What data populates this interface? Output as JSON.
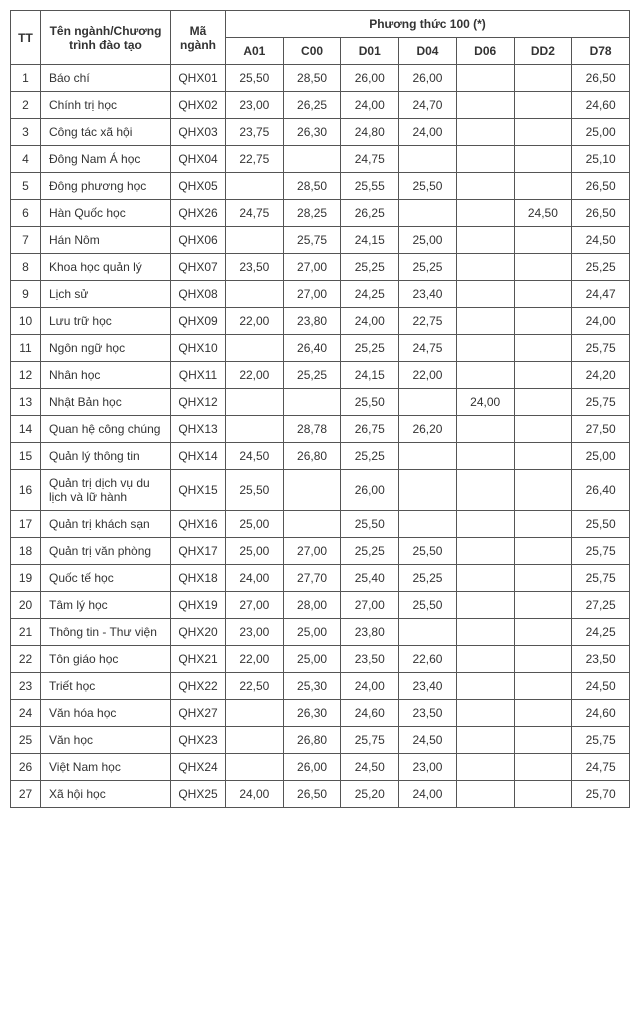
{
  "headers": {
    "tt": "TT",
    "name": "Tên ngành/Chương trình đào tạo",
    "code": "Mã ngành",
    "method": "Phương thức 100 (*)"
  },
  "subheaders": [
    "A01",
    "C00",
    "D01",
    "D04",
    "D06",
    "DD2",
    "D78"
  ],
  "rows": [
    {
      "tt": "1",
      "name": "Báo chí",
      "code": "QHX01",
      "s": [
        "25,50",
        "28,50",
        "26,00",
        "26,00",
        "",
        "",
        "26,50"
      ]
    },
    {
      "tt": "2",
      "name": "Chính trị học",
      "code": "QHX02",
      "s": [
        "23,00",
        "26,25",
        "24,00",
        "24,70",
        "",
        "",
        "24,60"
      ]
    },
    {
      "tt": "3",
      "name": "Công tác xã hội",
      "code": "QHX03",
      "s": [
        "23,75",
        "26,30",
        "24,80",
        "24,00",
        "",
        "",
        "25,00"
      ]
    },
    {
      "tt": "4",
      "name": "Đông Nam Á học",
      "code": "QHX04",
      "s": [
        "22,75",
        "",
        "24,75",
        "",
        "",
        "",
        "25,10"
      ]
    },
    {
      "tt": "5",
      "name": "Đông phương học",
      "code": "QHX05",
      "s": [
        "",
        "28,50",
        "25,55",
        "25,50",
        "",
        "",
        "26,50"
      ]
    },
    {
      "tt": "6",
      "name": "Hàn Quốc học",
      "code": "QHX26",
      "s": [
        "24,75",
        "28,25",
        "26,25",
        "",
        "",
        "24,50",
        "26,50"
      ]
    },
    {
      "tt": "7",
      "name": "Hán Nôm",
      "code": "QHX06",
      "s": [
        "",
        "25,75",
        "24,15",
        "25,00",
        "",
        "",
        "24,50"
      ]
    },
    {
      "tt": "8",
      "name": "Khoa học quản lý",
      "code": "QHX07",
      "s": [
        "23,50",
        "27,00",
        "25,25",
        "25,25",
        "",
        "",
        "25,25"
      ]
    },
    {
      "tt": "9",
      "name": "Lịch sử",
      "code": "QHX08",
      "s": [
        "",
        "27,00",
        "24,25",
        "23,40",
        "",
        "",
        "24,47"
      ]
    },
    {
      "tt": "10",
      "name": "Lưu trữ học",
      "code": "QHX09",
      "s": [
        "22,00",
        "23,80",
        "24,00",
        "22,75",
        "",
        "",
        "24,00"
      ]
    },
    {
      "tt": "11",
      "name": "Ngôn ngữ học",
      "code": "QHX10",
      "s": [
        "",
        "26,40",
        "25,25",
        "24,75",
        "",
        "",
        "25,75"
      ]
    },
    {
      "tt": "12",
      "name": "Nhân học",
      "code": "QHX11",
      "s": [
        "22,00",
        "25,25",
        "24,15",
        "22,00",
        "",
        "",
        "24,20"
      ]
    },
    {
      "tt": "13",
      "name": "Nhật Bản học",
      "code": "QHX12",
      "s": [
        "",
        "",
        "25,50",
        "",
        "24,00",
        "",
        "25,75"
      ]
    },
    {
      "tt": "14",
      "name": "Quan hệ công chúng",
      "code": "QHX13",
      "s": [
        "",
        "28,78",
        "26,75",
        "26,20",
        "",
        "",
        "27,50"
      ]
    },
    {
      "tt": "15",
      "name": "Quản lý thông tin",
      "code": "QHX14",
      "s": [
        "24,50",
        "26,80",
        "25,25",
        "",
        "",
        "",
        "25,00"
      ]
    },
    {
      "tt": "16",
      "name": "Quản trị dịch vụ du lịch và lữ hành",
      "code": "QHX15",
      "s": [
        "25,50",
        "",
        "26,00",
        "",
        "",
        "",
        "26,40"
      ]
    },
    {
      "tt": "17",
      "name": "Quản trị khách sạn",
      "code": "QHX16",
      "s": [
        "25,00",
        "",
        "25,50",
        "",
        "",
        "",
        "25,50"
      ]
    },
    {
      "tt": "18",
      "name": "Quản trị văn phòng",
      "code": "QHX17",
      "s": [
        "25,00",
        "27,00",
        "25,25",
        "25,50",
        "",
        "",
        "25,75"
      ]
    },
    {
      "tt": "19",
      "name": "Quốc tế học",
      "code": "QHX18",
      "s": [
        "24,00",
        "27,70",
        "25,40",
        "25,25",
        "",
        "",
        "25,75"
      ]
    },
    {
      "tt": "20",
      "name": "Tâm lý học",
      "code": "QHX19",
      "s": [
        "27,00",
        "28,00",
        "27,00",
        "25,50",
        "",
        "",
        "27,25"
      ]
    },
    {
      "tt": "21",
      "name": "Thông tin - Thư viện",
      "code": "QHX20",
      "s": [
        "23,00",
        "25,00",
        "23,80",
        "",
        "",
        "",
        "24,25"
      ]
    },
    {
      "tt": "22",
      "name": "Tôn giáo học",
      "code": "QHX21",
      "s": [
        "22,00",
        "25,00",
        "23,50",
        "22,60",
        "",
        "",
        "23,50"
      ]
    },
    {
      "tt": "23",
      "name": "Triết học",
      "code": "QHX22",
      "s": [
        "22,50",
        "25,30",
        "24,00",
        "23,40",
        "",
        "",
        "24,50"
      ]
    },
    {
      "tt": "24",
      "name": "Văn hóa học",
      "code": "QHX27",
      "s": [
        "",
        "26,30",
        "24,60",
        "23,50",
        "",
        "",
        "24,60"
      ]
    },
    {
      "tt": "25",
      "name": "Văn học",
      "code": "QHX23",
      "s": [
        "",
        "26,80",
        "25,75",
        "24,50",
        "",
        "",
        "25,75"
      ]
    },
    {
      "tt": "26",
      "name": "Việt Nam học",
      "code": "QHX24",
      "s": [
        "",
        "26,00",
        "24,50",
        "23,00",
        "",
        "",
        "24,75"
      ]
    },
    {
      "tt": "27",
      "name": "Xã hội học",
      "code": "QHX25",
      "s": [
        "24,00",
        "26,50",
        "25,20",
        "24,00",
        "",
        "",
        "25,70"
      ]
    }
  ]
}
